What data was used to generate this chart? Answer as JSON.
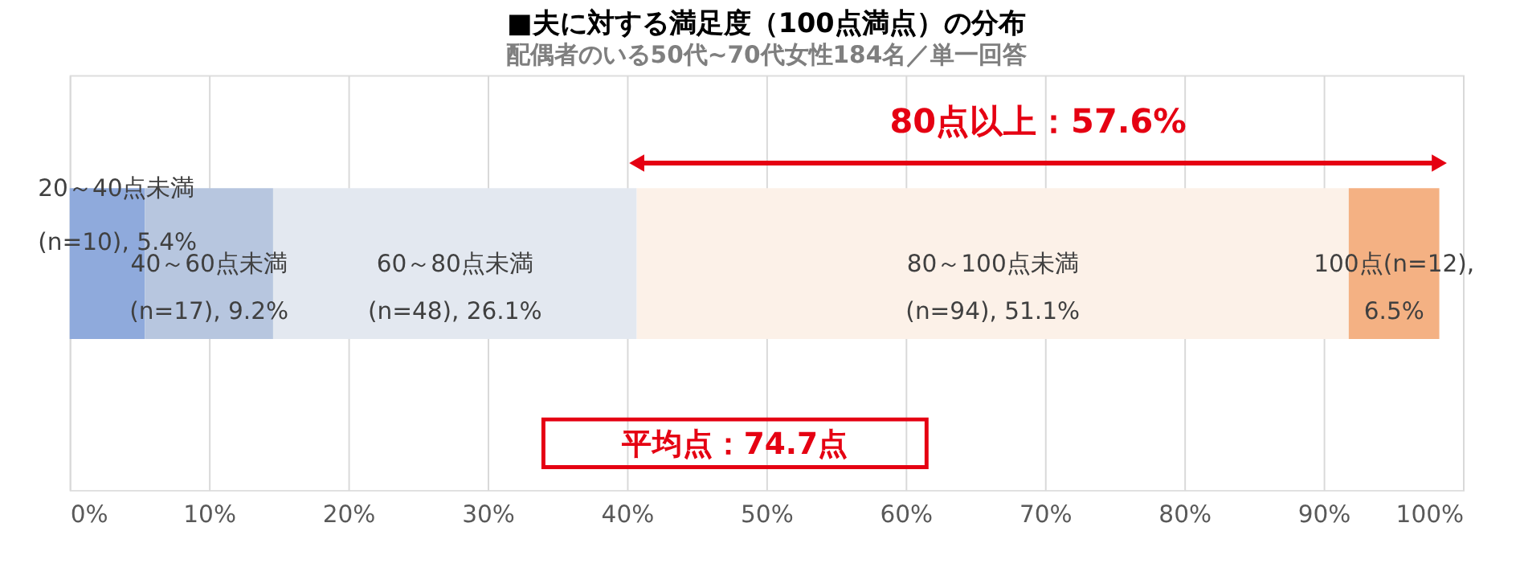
{
  "chart_data": {
    "type": "bar",
    "orientation": "horizontal",
    "stacked": true,
    "title": "■夫に対する満足度（100点満点）の分布",
    "subtitle": "配偶者のいる50代~70代女性184名／単一回答",
    "categories": [
      null
    ],
    "series": [
      {
        "color": "#8faadc",
        "values": [
          5.4
        ],
        "value_labels": [
          "20～40点未満\n(n=10), 5.4%"
        ]
      },
      {
        "color": "#b7c6df",
        "values": [
          9.2
        ],
        "value_labels": [
          "40～60点未満\n(n=17), 9.2%"
        ]
      },
      {
        "color": "#e3e8f0",
        "values": [
          26.1
        ],
        "value_labels": [
          "60～80点未満\n(n=48), 26.1%"
        ]
      },
      {
        "color": "#fcf1e8",
        "values": [
          51.1
        ],
        "value_labels": [
          "80～100点未満\n(n=94), 51.1%"
        ]
      },
      {
        "color": "#f4b183",
        "values": [
          6.5
        ],
        "value_labels": [
          "100点(n=12),\n6.5%"
        ]
      }
    ],
    "annotations": [
      "80点以上：57.6%",
      "平均点：74.7点"
    ],
    "xlim": [
      0,
      100
    ],
    "xticks": [
      {
        "value": 0,
        "label": "0%"
      },
      {
        "value": 10,
        "label": "10%"
      },
      {
        "value": 20,
        "label": "20%"
      },
      {
        "value": 30,
        "label": "30%"
      },
      {
        "value": 40,
        "label": "40%"
      },
      {
        "value": 50,
        "label": "50%"
      },
      {
        "value": 60,
        "label": "60%"
      },
      {
        "value": 70,
        "label": "70%"
      },
      {
        "value": 80,
        "label": "80%"
      },
      {
        "value": 90,
        "label": "90%"
      },
      {
        "value": 100,
        "label": "100%"
      }
    ],
    "grid": "x",
    "legend": false
  }
}
